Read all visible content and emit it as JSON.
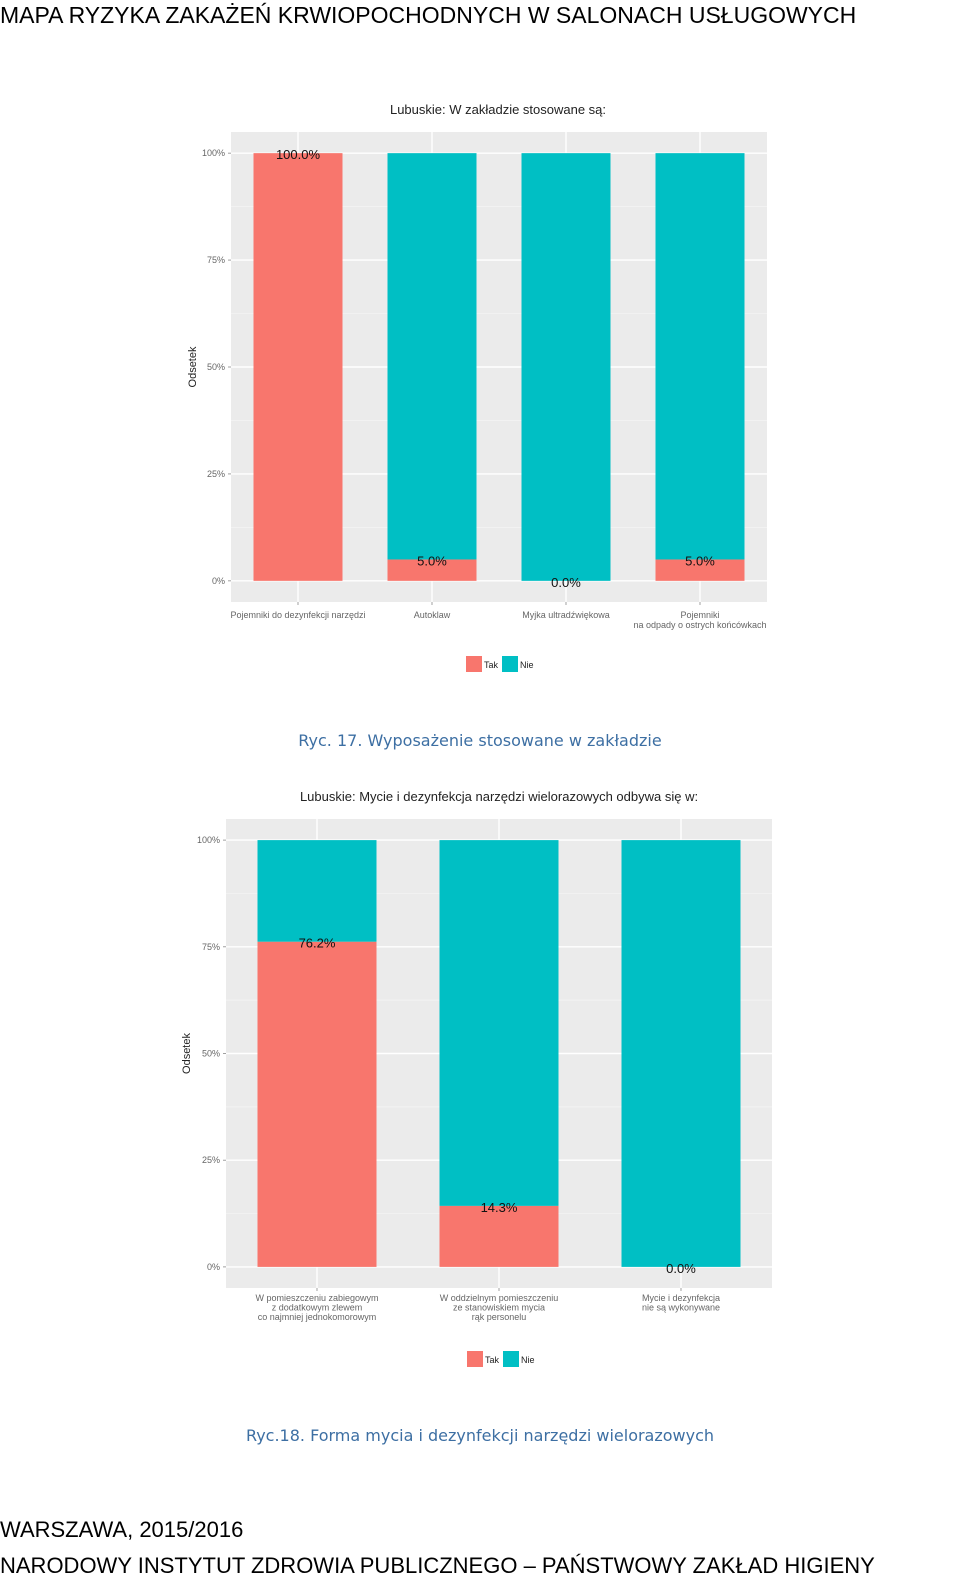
{
  "header": {
    "title": "MAPA RYZYKA ZAKAŻEŃ KRWIOPOCHODNYCH W SALONACH USŁUGOWYCH"
  },
  "colors": {
    "tak": "#F8766D",
    "nie": "#00BFC4",
    "panel": "#EBEBEB",
    "caption": "#3D6FA3"
  },
  "figures": [
    {
      "caption": "Ryc. 17. Wyposażenie stosowane w zakładzie",
      "chart_data": {
        "type": "bar",
        "stacked": true,
        "title": "Lubuskie: W zakładzie stosowane są:",
        "ylabel": "Odsetek",
        "xlabel": "",
        "ylim": [
          0,
          100
        ],
        "yticks": [
          0,
          25,
          50,
          75,
          100
        ],
        "ytick_labels": [
          "0%",
          "25%",
          "50%",
          "75%",
          "100%"
        ],
        "categories": [
          [
            "Pojemniki do dezynfekcji narzędzi"
          ],
          [
            "Autoklaw"
          ],
          [
            "Myjka ultradźwiękowa"
          ],
          [
            "Pojemniki",
            "na odpady o ostrych końcówkach"
          ]
        ],
        "series": [
          {
            "name": "Tak",
            "values": [
              100.0,
              5.0,
              0.0,
              5.0
            ]
          },
          {
            "name": "Nie",
            "values": [
              0.0,
              95.0,
              100.0,
              95.0
            ]
          }
        ],
        "data_labels": [
          "100.0%",
          "5.0%",
          "0.0%",
          "5.0%"
        ],
        "legend": {
          "position": "bottom",
          "entries": [
            "Tak",
            "Nie"
          ]
        },
        "grid": true
      }
    },
    {
      "caption": "Ryc.18. Forma mycia i dezynfekcji narzędzi wielorazowych",
      "chart_data": {
        "type": "bar",
        "stacked": true,
        "title": "Lubuskie: Mycie i dezynfekcja narzędzi wielorazowych odbywa się w:",
        "ylabel": "Odsetek",
        "xlabel": "",
        "ylim": [
          0,
          100
        ],
        "yticks": [
          0,
          25,
          50,
          75,
          100
        ],
        "ytick_labels": [
          "0%",
          "25%",
          "50%",
          "75%",
          "100%"
        ],
        "categories": [
          [
            "W pomieszczeniu zabiegowym",
            "z dodatkowym zlewem",
            "co najmniej jednokomorowym"
          ],
          [
            "W oddzielnym pomieszczeniu",
            "ze stanowiskiem mycia",
            "rąk personelu"
          ],
          [
            "Mycie i dezynfekcja",
            "nie są wykonywane"
          ]
        ],
        "series": [
          {
            "name": "Tak",
            "values": [
              76.2,
              14.3,
              0.0
            ]
          },
          {
            "name": "Nie",
            "values": [
              23.8,
              85.7,
              100.0
            ]
          }
        ],
        "data_labels": [
          "76.2%",
          "14.3%",
          "0.0%"
        ],
        "legend": {
          "position": "bottom",
          "entries": [
            "Tak",
            "Nie"
          ]
        },
        "grid": true
      }
    }
  ],
  "footer": {
    "line1": "WARSZAWA, 2015/2016",
    "line2": "NARODOWY INSTYTUT ZDROWIA PUBLICZNEGO – PAŃSTWOWY ZAKŁAD HIGIENY"
  }
}
